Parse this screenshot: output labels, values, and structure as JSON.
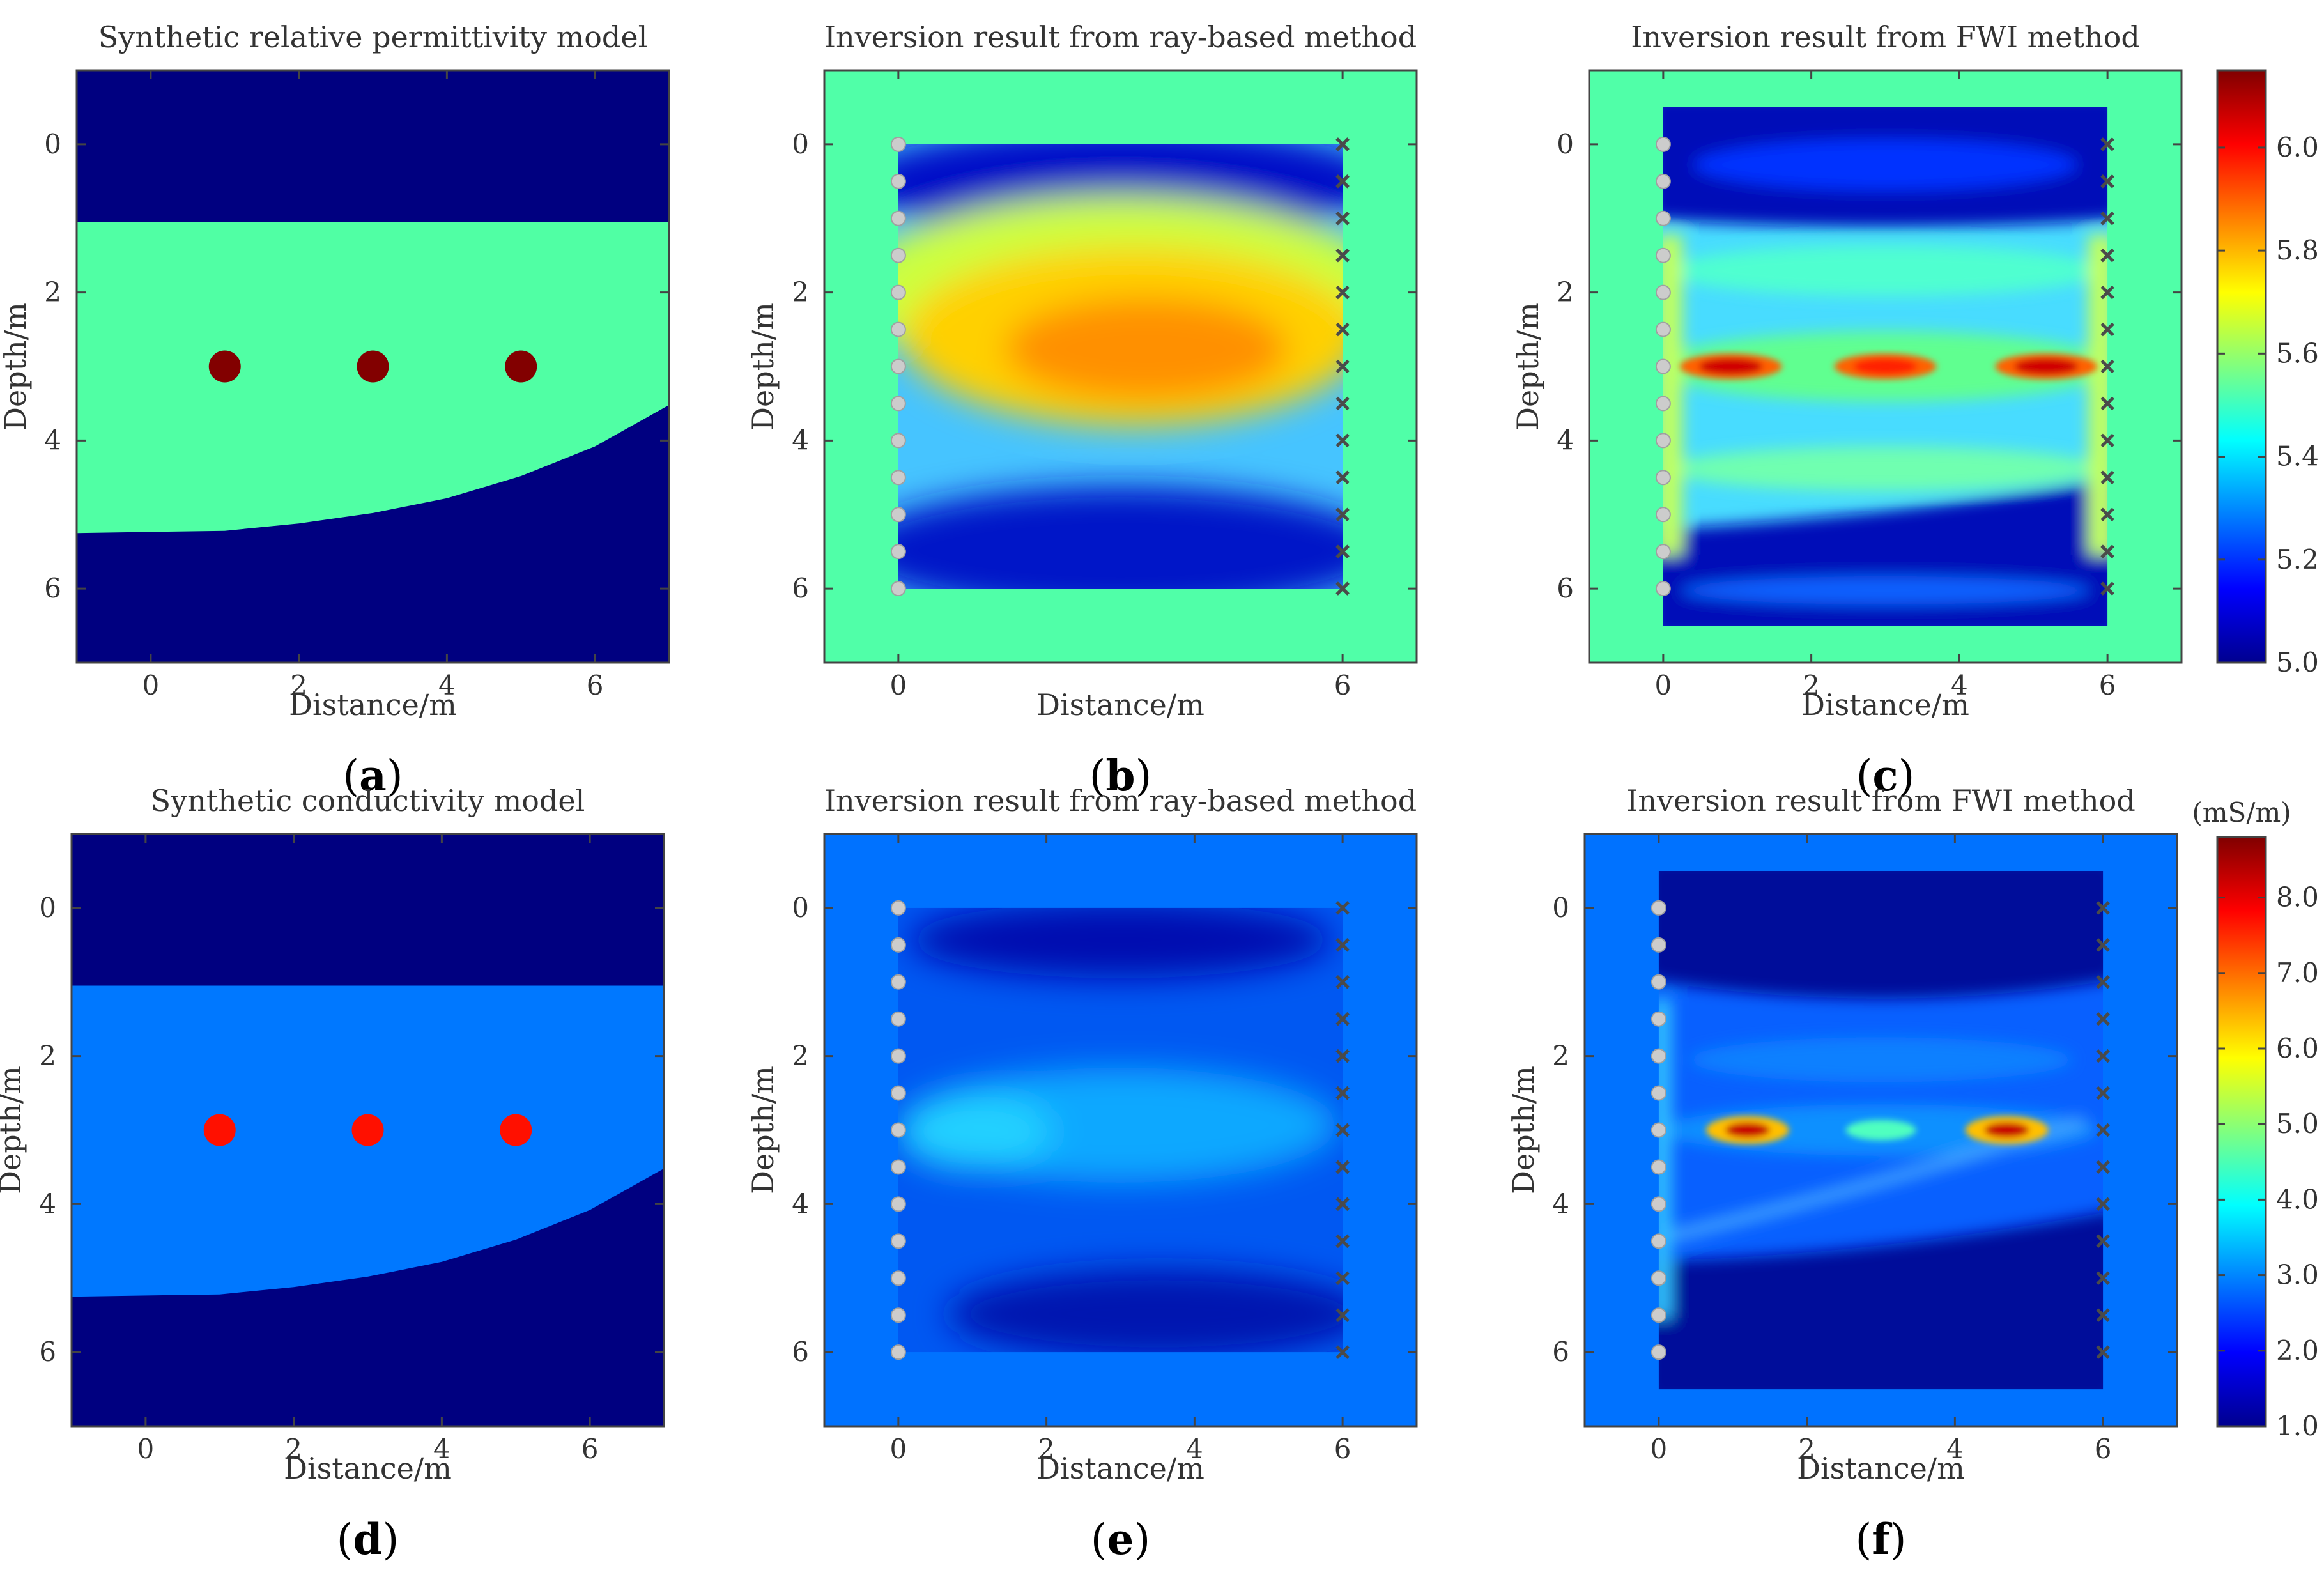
{
  "chart_data": [
    {
      "id": "a",
      "type": "heatmap",
      "title": "Synthetic relative permittivity model",
      "xlabel": "Distance/m",
      "ylabel": "Depth/m",
      "xlim": [
        -1,
        7
      ],
      "ylim": [
        -1,
        7
      ],
      "xticks": [
        0,
        2,
        4,
        6
      ],
      "yticks": [
        0,
        2,
        4,
        6
      ],
      "panel_label": "a",
      "model": "permittivity",
      "layer_top_depth": 1.05,
      "layer_bottom_depth": {
        "x": [
          -1,
          1,
          2,
          3,
          4,
          5,
          6,
          7
        ],
        "depth": [
          5.25,
          5.22,
          5.12,
          4.98,
          4.78,
          4.48,
          4.08,
          3.52
        ]
      },
      "anomalies": [
        {
          "x": 1,
          "y": 3
        },
        {
          "x": 3,
          "y": 3
        },
        {
          "x": 5,
          "y": 3
        }
      ],
      "background_value": 5.0,
      "layer_value": 5.5,
      "anomaly_value": 6.15
    },
    {
      "id": "b",
      "type": "heatmap",
      "title": "Inversion result from ray-based method",
      "xlabel": "Distance/m",
      "ylabel": "Depth/m",
      "xlim": [
        -1,
        7
      ],
      "ylim": [
        -1,
        7
      ],
      "xticks": [
        0,
        6
      ],
      "yticks": [
        0,
        2,
        4,
        6
      ],
      "panel_label": "b",
      "model": "permittivity",
      "method": "ray",
      "inversion_domain": {
        "x": [
          0,
          6
        ],
        "y": [
          0,
          6
        ]
      },
      "transmitters": {
        "x": 0,
        "depths": [
          0,
          0.5,
          1,
          1.5,
          2,
          2.5,
          3,
          3.5,
          4,
          4.5,
          5,
          5.5,
          6
        ]
      },
      "receivers": {
        "x": 6,
        "depths": [
          0,
          0.5,
          1,
          1.5,
          2,
          2.5,
          3,
          3.5,
          4,
          4.5,
          5,
          5.5,
          6
        ]
      }
    },
    {
      "id": "c",
      "type": "heatmap",
      "title": "Inversion result from FWI method",
      "xlabel": "Distance/m",
      "ylabel": "Depth/m",
      "xlim": [
        -1,
        7
      ],
      "ylim": [
        -1,
        7
      ],
      "xticks": [
        0,
        2,
        4,
        6
      ],
      "yticks": [
        0,
        2,
        4,
        6
      ],
      "panel_label": "c",
      "model": "permittivity",
      "method": "fwi",
      "inversion_domain": {
        "x": [
          0,
          6
        ],
        "y": [
          -0.5,
          6.5
        ]
      },
      "transmitters": {
        "x": 0,
        "depths": [
          0,
          0.5,
          1,
          1.5,
          2,
          2.5,
          3,
          3.5,
          4,
          4.5,
          5,
          5.5,
          6
        ]
      },
      "receivers": {
        "x": 6,
        "depths": [
          0,
          0.5,
          1,
          1.5,
          2,
          2.5,
          3,
          3.5,
          4,
          4.5,
          5,
          5.5,
          6
        ]
      },
      "colorbar": {
        "range": [
          5.0,
          6.15
        ],
        "ticks": [
          "5.0",
          "5.2",
          "5.4",
          "5.6",
          "5.8",
          "6.0"
        ],
        "unit": ""
      }
    },
    {
      "id": "d",
      "type": "heatmap",
      "title": "Synthetic conductivity model",
      "xlabel": "Distance/m",
      "ylabel": "Depth/m",
      "xlim": [
        -1,
        7
      ],
      "ylim": [
        -1,
        7
      ],
      "xticks": [
        0,
        2,
        4,
        6
      ],
      "yticks": [
        0,
        2,
        4,
        6
      ],
      "panel_label": "d",
      "model": "conductivity",
      "layer_top_depth": 1.05,
      "layer_bottom_depth": {
        "x": [
          -1,
          1,
          2,
          3,
          4,
          5,
          6,
          7
        ],
        "depth": [
          5.25,
          5.22,
          5.12,
          4.98,
          4.78,
          4.48,
          4.08,
          3.52
        ]
      },
      "anomalies": [
        {
          "x": 1,
          "y": 3
        },
        {
          "x": 3,
          "y": 3
        },
        {
          "x": 5,
          "y": 3
        }
      ],
      "background_value": 1.0,
      "layer_value": 2.5,
      "anomaly_value": 7.6
    },
    {
      "id": "e",
      "type": "heatmap",
      "title": "Inversion result from ray-based method",
      "xlabel": "Distance/m",
      "ylabel": "Depth/m",
      "xlim": [
        -1,
        7
      ],
      "ylim": [
        -1,
        7
      ],
      "xticks": [
        0,
        2,
        4,
        6
      ],
      "yticks": [
        0,
        2,
        4,
        6
      ],
      "panel_label": "e",
      "model": "conductivity",
      "method": "ray",
      "inversion_domain": {
        "x": [
          0,
          6
        ],
        "y": [
          0,
          6
        ]
      },
      "transmitters": {
        "x": 0,
        "depths": [
          0,
          0.5,
          1,
          1.5,
          2,
          2.5,
          3,
          3.5,
          4,
          4.5,
          5,
          5.5,
          6
        ]
      },
      "receivers": {
        "x": 6,
        "depths": [
          0,
          0.5,
          1,
          1.5,
          2,
          2.5,
          3,
          3.5,
          4,
          4.5,
          5,
          5.5,
          6
        ]
      }
    },
    {
      "id": "f",
      "type": "heatmap",
      "title": "Inversion result from FWI method",
      "xlabel": "Distance/m",
      "ylabel": "Depth/m",
      "xlim": [
        -1,
        7
      ],
      "ylim": [
        -1,
        7
      ],
      "xticks": [
        0,
        2,
        4,
        6
      ],
      "yticks": [
        0,
        2,
        4,
        6
      ],
      "panel_label": "f",
      "model": "conductivity",
      "method": "fwi",
      "inversion_domain": {
        "x": [
          0,
          6
        ],
        "y": [
          -0.5,
          6.5
        ]
      },
      "transmitters": {
        "x": 0,
        "depths": [
          0,
          0.5,
          1,
          1.5,
          2,
          2.5,
          3,
          3.5,
          4,
          4.5,
          5,
          5.5,
          6
        ]
      },
      "receivers": {
        "x": 6,
        "depths": [
          0,
          0.5,
          1,
          1.5,
          2,
          2.5,
          3,
          3.5,
          4,
          4.5,
          5,
          5.5,
          6
        ]
      },
      "colorbar": {
        "range": [
          1.0,
          8.8
        ],
        "ticks": [
          "1.0",
          "2.0",
          "3.0",
          "4.0",
          "5.0",
          "6.0",
          "7.0",
          "8.0"
        ],
        "unit": "(mS/m)"
      }
    }
  ],
  "colors": {
    "permittivity_background": "#000080",
    "permittivity_layer": "#50ffa4",
    "permittivity_anomaly": "#820000",
    "conductivity_background": "#000080",
    "conductivity_layer": "#0078ff",
    "conductivity_anomaly": "#ff1000",
    "transmitter_marker": "#cccccc",
    "receiver_marker": "#4a4a4a"
  }
}
